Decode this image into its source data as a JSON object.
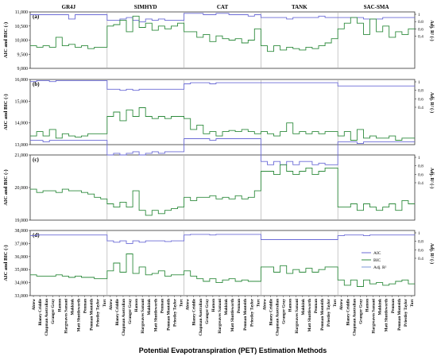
{
  "figure": {
    "xlabel": "Potential Evapotranspiration (PET) Estimation Methods",
    "left_ylabel": "AIC and BIC (-)",
    "right_ylabel": "Adj. R² (-)",
    "models": [
      "GR4J",
      "SIMHYD",
      "CAT",
      "TANK",
      "SAC-SMA"
    ],
    "methods": [
      "Abtew",
      "Blaney Criddle",
      "Chapman Australian",
      "Granger Gray",
      "Hamon",
      "Hargreaves Samani",
      "Makkink",
      "Matt Shuttleworth",
      "Penman",
      "Penman Monteith",
      "Priestley Taylor",
      "Turc"
    ],
    "legend": [
      {
        "label": "AIC",
        "color": "#6b6bd6"
      },
      {
        "label": "BIC",
        "color": "#2e8b3d"
      },
      {
        "label": "Adj. R²",
        "color": "#7e9ad8"
      }
    ],
    "colors": {
      "aic": "#6b6bd6",
      "bic": "#2e8b3d",
      "r2": "#7e9ad8",
      "separator": "#b0b0b0"
    }
  },
  "chart_data": [
    {
      "type": "line",
      "panel_label": "(a)",
      "ylim": [
        9000,
        11000
      ],
      "yticks": [
        "9,000",
        "9,500",
        "10,000",
        "10,500",
        "11,000"
      ],
      "r2_ticks": [
        "0.4",
        "0.6",
        "0.8",
        "1"
      ],
      "series": [
        {
          "name": "AIC",
          "values": [
            10900,
            10900,
            10900,
            10900,
            10900,
            10900,
            10750,
            10900,
            10900,
            10900,
            10900,
            10900,
            10700,
            10700,
            10750,
            10800,
            10700,
            10650,
            10750,
            10700,
            10750,
            10700,
            10700,
            10700,
            10950,
            10950,
            10950,
            10900,
            10900,
            10950,
            10950,
            10900,
            10900,
            10900,
            10850,
            10900,
            10800,
            10800,
            10800,
            10800,
            10750,
            10800,
            10800,
            10800,
            10800,
            10850,
            10800,
            10800,
            10800,
            10800,
            10800,
            10800,
            10750,
            10750,
            10750,
            10800,
            10800,
            10800,
            10800,
            10800
          ]
        },
        {
          "name": "BIC",
          "values": [
            9800,
            9750,
            9800,
            9750,
            10100,
            9800,
            9850,
            9750,
            9800,
            9700,
            9750,
            9750,
            10500,
            10550,
            10700,
            10300,
            10850,
            10450,
            10600,
            10350,
            10500,
            10400,
            10500,
            10600,
            10300,
            10300,
            10100,
            10200,
            9950,
            10150,
            10050,
            10000,
            10050,
            9900,
            10000,
            10400,
            9800,
            9600,
            9800,
            9650,
            9750,
            9700,
            9650,
            9750,
            9700,
            9800,
            9900,
            10050,
            10400,
            10600,
            10800,
            10600,
            10200,
            10750,
            10300,
            10500,
            10100,
            10300,
            10200,
            10400
          ]
        },
        {
          "name": "Adj. R²",
          "values": []
        }
      ]
    },
    {
      "type": "line",
      "panel_label": "(b)",
      "ylim": [
        13000,
        16000
      ],
      "yticks": [
        "13,000",
        "14,000",
        "15,000",
        "16,000"
      ],
      "r2_ticks": [
        "0.4",
        "0.6",
        "0.8",
        "1"
      ],
      "series": [
        {
          "name": "AIC",
          "values": [
            15900,
            15950,
            15950,
            15900,
            15950,
            15950,
            15950,
            15950,
            15950,
            15950,
            15950,
            15950,
            15550,
            15550,
            15500,
            15550,
            15500,
            15550,
            15550,
            15550,
            15550,
            15550,
            15550,
            15550,
            15800,
            15850,
            15850,
            15850,
            15800,
            15850,
            15850,
            15850,
            15850,
            15850,
            15850,
            15850,
            15850,
            15850,
            15850,
            15850,
            15850,
            15850,
            15850,
            15850,
            15850,
            15850,
            15850,
            15850,
            15700,
            15700,
            15700,
            15700,
            15700,
            15700,
            15700,
            15700,
            15700,
            15700,
            15700,
            15700
          ]
        },
        {
          "name": "BIC",
          "values": [
            13400,
            13600,
            13400,
            13700,
            13300,
            13500,
            13400,
            13350,
            13400,
            13500,
            13500,
            13500,
            14300,
            14500,
            14100,
            14600,
            14300,
            14700,
            14300,
            14200,
            14300,
            14200,
            14300,
            14300,
            14200,
            13700,
            13900,
            13500,
            13600,
            13400,
            13600,
            13650,
            13600,
            13700,
            13600,
            13500,
            13600,
            13500,
            13400,
            13600,
            14000,
            13500,
            13600,
            13500,
            13600,
            13500,
            13600,
            13600,
            13400,
            13600,
            13200,
            13700,
            13300,
            13400,
            13300,
            13300,
            13400,
            13200,
            13300,
            13300
          ]
        },
        {
          "name": "Adj. R²",
          "values": []
        }
      ]
    },
    {
      "type": "line",
      "panel_label": "(c)",
      "ylim": [
        19000,
        21000
      ],
      "yticks": [
        "19,000",
        "20,000",
        "21,000"
      ],
      "r2_ticks": [
        "0.4",
        "0.6",
        "0.8",
        "1"
      ],
      "series": [
        {
          "name": "AIC",
          "values": [
            21450,
            21450,
            21400,
            21450,
            21450,
            21450,
            21450,
            21450,
            21450,
            21450,
            21450,
            21450,
            21000,
            21050,
            21000,
            21050,
            21100,
            21000,
            21050,
            21100,
            21050,
            21100,
            21100,
            21100,
            21500,
            21500,
            21500,
            21500,
            21450,
            21500,
            21500,
            21500,
            21500,
            21500,
            21500,
            21500,
            20800,
            20700,
            20800,
            20700,
            20800,
            20700,
            20800,
            20800,
            20700,
            20750,
            20700,
            20700,
            21400,
            21400,
            21400,
            21350,
            21400,
            21400,
            21400,
            21400,
            21400,
            21400,
            21400,
            21400
          ]
        },
        {
          "name": "BIC",
          "values": [
            19950,
            19850,
            19900,
            19900,
            19850,
            19950,
            19900,
            19900,
            19850,
            19800,
            19700,
            19650,
            19500,
            19400,
            19550,
            19400,
            19900,
            19300,
            19150,
            19300,
            19200,
            19300,
            19350,
            19400,
            19700,
            19600,
            19700,
            19700,
            19750,
            19650,
            19700,
            19650,
            19750,
            19650,
            19700,
            19900,
            20500,
            20500,
            20400,
            20700,
            20500,
            20400,
            20500,
            20600,
            20400,
            20500,
            20600,
            20600,
            19400,
            19400,
            19500,
            19300,
            19500,
            19400,
            19300,
            19400,
            19500,
            19300,
            19600,
            19500
          ]
        },
        {
          "name": "Adj. R²",
          "values": []
        }
      ]
    },
    {
      "type": "line",
      "panel_label": "(d)",
      "ylim": [
        33000,
        38000
      ],
      "yticks": [
        "33,000",
        "34,000",
        "35,000",
        "36,000",
        "37,000",
        "38,000"
      ],
      "r2_ticks": [
        "0.4",
        "0.6",
        "0.8",
        "1"
      ],
      "series": [
        {
          "name": "AIC",
          "values": [
            37600,
            37650,
            37650,
            37650,
            37650,
            37650,
            37650,
            37650,
            37650,
            37650,
            37650,
            37650,
            37200,
            37100,
            37200,
            37000,
            37200,
            37100,
            37200,
            37200,
            37200,
            37150,
            37200,
            37200,
            37650,
            37700,
            37700,
            37700,
            37650,
            37700,
            37700,
            37700,
            37700,
            37700,
            37700,
            37700,
            37300,
            37300,
            37300,
            37300,
            37300,
            37300,
            37300,
            37300,
            37300,
            37300,
            37300,
            37300,
            37600,
            37650,
            37650,
            37650,
            37600,
            37650,
            37650,
            37650,
            37650,
            37650,
            37650,
            37650
          ]
        },
        {
          "name": "BIC",
          "values": [
            34600,
            34500,
            34500,
            34500,
            34600,
            34500,
            34400,
            34500,
            34400,
            34400,
            34300,
            34300,
            34900,
            35500,
            34800,
            36200,
            34700,
            35200,
            34600,
            34700,
            34900,
            34500,
            34600,
            34600,
            34900,
            34500,
            34300,
            34100,
            34300,
            34000,
            34200,
            34300,
            34100,
            34200,
            34100,
            34100,
            35200,
            35200,
            34800,
            35300,
            34700,
            35000,
            34800,
            35100,
            34800,
            35000,
            35200,
            35200,
            34200,
            33800,
            34200,
            33700,
            34200,
            33900,
            34000,
            33800,
            33900,
            34100,
            34200,
            33900
          ]
        },
        {
          "name": "Adj. R²",
          "values": []
        }
      ]
    }
  ]
}
